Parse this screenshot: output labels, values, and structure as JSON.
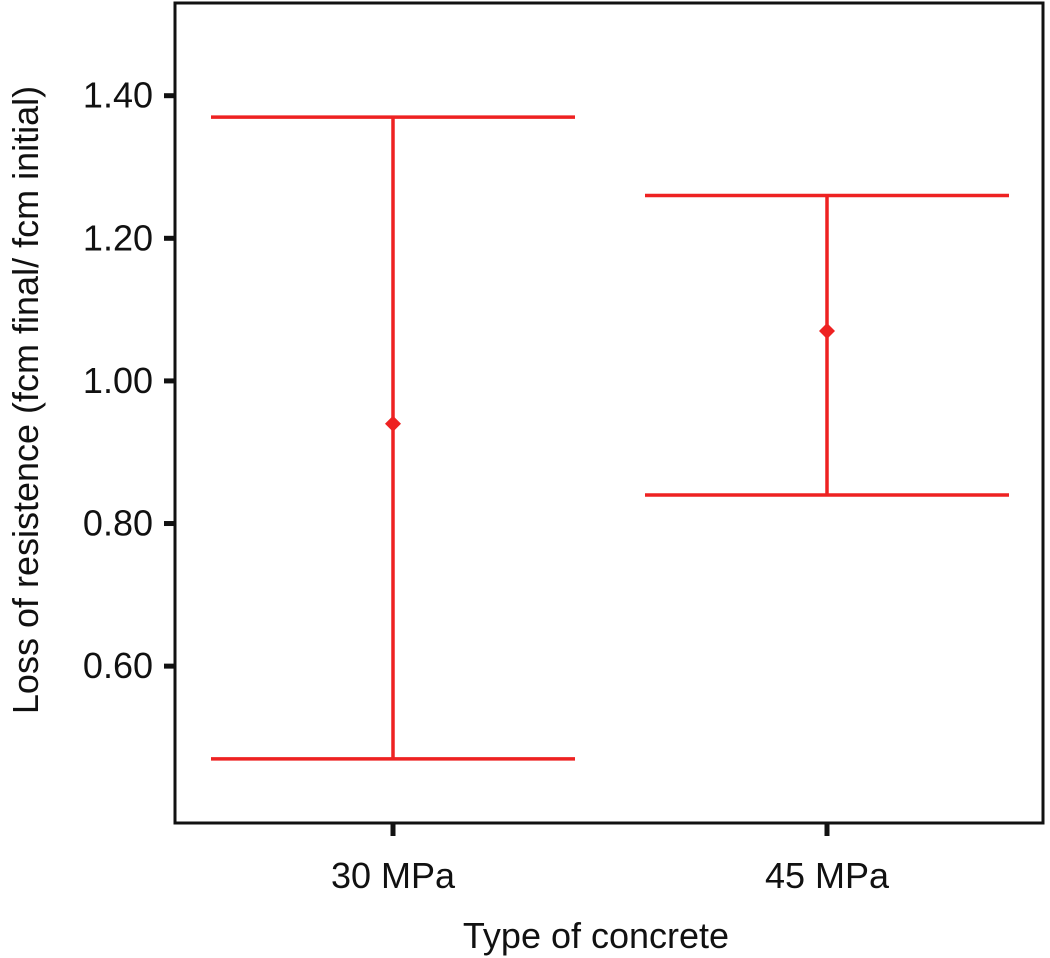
{
  "chart_data": {
    "type": "errorbar",
    "title": "",
    "xlabel": "Type of concrete",
    "ylabel": "Loss of resistence (fcm final/ fcm initial)",
    "categories": [
      "30 MPa",
      "45 MPa"
    ],
    "mean": [
      0.94,
      1.07
    ],
    "lower": [
      0.47,
      0.84
    ],
    "upper": [
      1.37,
      1.26
    ],
    "ylim": [
      0.38,
      1.53
    ],
    "yticks": [
      0.6,
      0.8,
      1.0,
      1.2,
      1.4
    ],
    "ytick_labels": [
      "0.60",
      "0.80",
      "1.00",
      "1.20",
      "1.40"
    ],
    "grid": false,
    "colors": {
      "series": "#ee2222",
      "axis": "#111111"
    }
  }
}
